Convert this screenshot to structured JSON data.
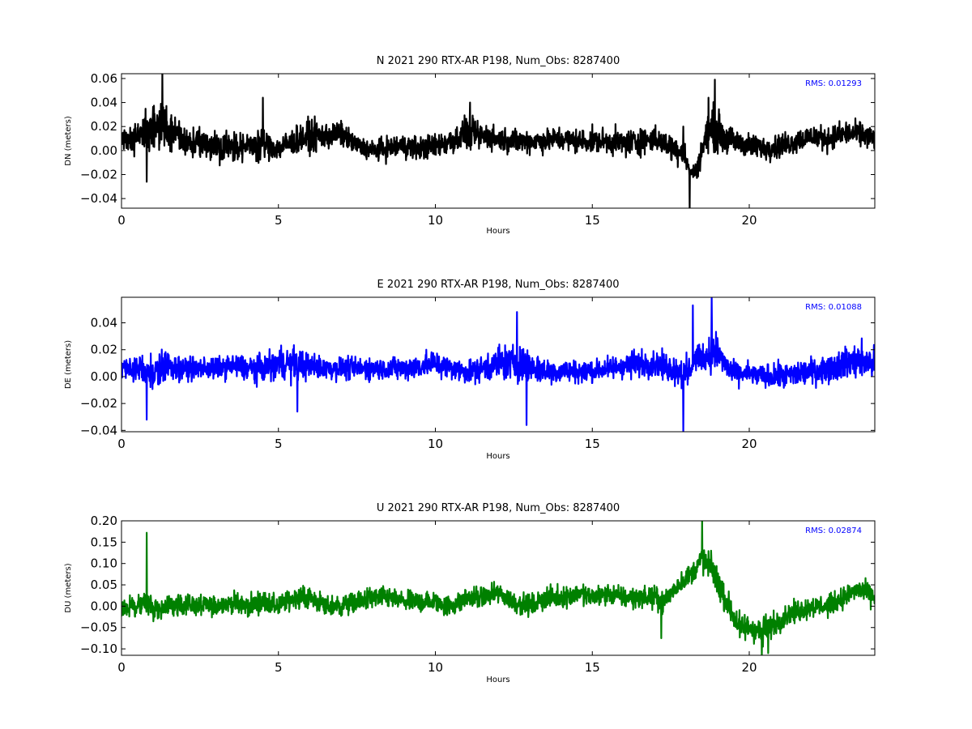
{
  "chart_data": [
    {
      "type": "line",
      "title": "N 2021 290 RTX-AR  P198, Num_Obs: 8287400",
      "xlabel": "Hours",
      "ylabel": "DN (meters)",
      "xlim": [
        0,
        24
      ],
      "ylim": [
        -0.048,
        0.064
      ],
      "xticks": [
        0,
        5,
        10,
        15,
        20
      ],
      "xtick_labels": [
        "0",
        "5",
        "10",
        "15",
        "20"
      ],
      "yticks": [
        -0.04,
        -0.02,
        0.0,
        0.02,
        0.04,
        0.06
      ],
      "ytick_labels": [
        "−0.04",
        "−0.02",
        "0.00",
        "0.02",
        "0.04",
        "0.06"
      ],
      "grid": false,
      "annotation": "RMS:  0.01293",
      "color": "#000000",
      "annotation_color": "#0000ff",
      "series": [
        {
          "x": [
            0,
            0.5,
            1.0,
            1.3,
            1.6,
            2.0,
            2.5,
            3.0,
            3.5,
            4.0,
            4.5,
            5.0,
            5.5,
            6.0,
            6.5,
            7.0,
            7.5,
            8.0,
            8.5,
            9.0,
            9.5,
            10.0,
            10.5,
            11.0,
            11.5,
            12.0,
            12.5,
            13.0,
            13.5,
            14.0,
            14.5,
            15.0,
            15.5,
            16.0,
            16.5,
            17.0,
            17.3,
            17.6,
            17.9,
            18.1,
            18.3,
            18.6,
            18.9,
            19.2,
            19.5,
            20.0,
            20.5,
            21.0,
            21.5,
            22.0,
            22.5,
            23.0,
            23.5,
            24.0
          ],
          "center": [
            0.01,
            0.012,
            0.018,
            0.02,
            0.015,
            0.008,
            0.006,
            0.004,
            0.004,
            0.003,
            0.006,
            0.002,
            0.008,
            0.012,
            0.012,
            0.014,
            0.004,
            0.0,
            0.002,
            0.004,
            0.002,
            0.004,
            0.008,
            0.014,
            0.012,
            0.01,
            0.008,
            0.008,
            0.008,
            0.01,
            0.008,
            0.008,
            0.008,
            0.006,
            0.008,
            0.01,
            0.005,
            0.002,
            0.0,
            -0.018,
            -0.018,
            0.01,
            0.02,
            0.01,
            0.008,
            0.004,
            0.002,
            0.004,
            0.008,
            0.012,
            0.01,
            0.014,
            0.014,
            0.01
          ],
          "spread": [
            0.012,
            0.016,
            0.022,
            0.024,
            0.022,
            0.014,
            0.014,
            0.016,
            0.014,
            0.014,
            0.016,
            0.012,
            0.014,
            0.016,
            0.014,
            0.012,
            0.01,
            0.01,
            0.012,
            0.012,
            0.012,
            0.012,
            0.014,
            0.016,
            0.014,
            0.012,
            0.012,
            0.012,
            0.012,
            0.012,
            0.012,
            0.012,
            0.012,
            0.014,
            0.014,
            0.012,
            0.012,
            0.014,
            0.016,
            0.004,
            0.01,
            0.016,
            0.024,
            0.016,
            0.012,
            0.012,
            0.012,
            0.012,
            0.012,
            0.012,
            0.012,
            0.012,
            0.012,
            0.012
          ],
          "spikes": [
            [
              1.3,
              0.064
            ],
            [
              0.8,
              -0.026
            ],
            [
              4.5,
              0.044
            ],
            [
              11.1,
              0.04
            ],
            [
              17.9,
              0.02
            ],
            [
              18.1,
              -0.048
            ],
            [
              18.9,
              0.059
            ],
            [
              18.7,
              0.044
            ]
          ]
        }
      ]
    },
    {
      "type": "line",
      "title": "E 2021 290 RTX-AR  P198, Num_Obs: 8287400",
      "xlabel": "Hours",
      "ylabel": "DE (meters)",
      "xlim": [
        0,
        24
      ],
      "ylim": [
        -0.041,
        0.059
      ],
      "xticks": [
        0,
        5,
        10,
        15,
        20
      ],
      "xtick_labels": [
        "0",
        "5",
        "10",
        "15",
        "20"
      ],
      "yticks": [
        -0.04,
        -0.02,
        0.0,
        0.02,
        0.04
      ],
      "ytick_labels": [
        "−0.04",
        "−0.02",
        "0.00",
        "0.02",
        "0.04"
      ],
      "grid": false,
      "annotation": "RMS:  0.01088",
      "color": "#0000ff",
      "annotation_color": "#0000ff",
      "series": [
        {
          "x": [
            0,
            0.5,
            1.0,
            1.5,
            2.0,
            2.5,
            3.0,
            3.5,
            4.0,
            4.5,
            5.0,
            5.5,
            6.0,
            6.5,
            7.0,
            7.5,
            8.0,
            8.5,
            9.0,
            9.5,
            10.0,
            10.5,
            11.0,
            11.5,
            12.0,
            12.5,
            13.0,
            13.5,
            14.0,
            14.5,
            15.0,
            15.5,
            16.0,
            16.5,
            17.0,
            17.5,
            17.8,
            18.0,
            18.3,
            18.6,
            18.9,
            19.2,
            19.5,
            20.0,
            20.5,
            21.0,
            21.5,
            22.0,
            22.5,
            23.0,
            23.5,
            24.0
          ],
          "center": [
            0.006,
            0.006,
            0.004,
            0.008,
            0.006,
            0.006,
            0.006,
            0.008,
            0.006,
            0.006,
            0.01,
            0.01,
            0.008,
            0.006,
            0.006,
            0.006,
            0.006,
            0.006,
            0.006,
            0.008,
            0.01,
            0.006,
            0.004,
            0.006,
            0.01,
            0.01,
            0.008,
            0.004,
            0.004,
            0.004,
            0.004,
            0.006,
            0.008,
            0.01,
            0.01,
            0.006,
            0.004,
            0.0,
            0.014,
            0.014,
            0.02,
            0.01,
            0.002,
            0.002,
            0.0,
            0.0,
            0.002,
            0.004,
            0.006,
            0.01,
            0.012,
            0.01
          ],
          "spread": [
            0.012,
            0.012,
            0.014,
            0.012,
            0.01,
            0.01,
            0.01,
            0.01,
            0.012,
            0.012,
            0.014,
            0.016,
            0.012,
            0.01,
            0.01,
            0.01,
            0.01,
            0.01,
            0.01,
            0.012,
            0.012,
            0.01,
            0.01,
            0.012,
            0.016,
            0.016,
            0.016,
            0.012,
            0.01,
            0.01,
            0.01,
            0.01,
            0.012,
            0.012,
            0.012,
            0.012,
            0.014,
            0.014,
            0.01,
            0.012,
            0.02,
            0.012,
            0.01,
            0.01,
            0.01,
            0.012,
            0.012,
            0.012,
            0.012,
            0.014,
            0.016,
            0.014
          ],
          "spikes": [
            [
              0.8,
              -0.032
            ],
            [
              5.6,
              -0.026
            ],
            [
              12.6,
              0.048
            ],
            [
              12.9,
              -0.036
            ],
            [
              17.9,
              -0.041
            ],
            [
              18.2,
              0.053
            ],
            [
              18.8,
              0.059
            ],
            [
              18.0,
              0.018
            ]
          ]
        }
      ]
    },
    {
      "type": "line",
      "title": "U 2021 290 RTX-AR  P198, Num_Obs: 8287400",
      "xlabel": "Hours",
      "ylabel": "DU (meters)",
      "xlim": [
        0,
        24
      ],
      "ylim": [
        -0.115,
        0.2
      ],
      "xticks": [
        0,
        5,
        10,
        15,
        20
      ],
      "xtick_labels": [
        "0",
        "5",
        "10",
        "15",
        "20"
      ],
      "yticks": [
        -0.1,
        -0.05,
        0.0,
        0.05,
        0.1,
        0.15,
        0.2
      ],
      "ytick_labels": [
        "−0.10",
        "−0.05",
        "0.00",
        "0.05",
        "0.10",
        "0.15",
        "0.20"
      ],
      "grid": false,
      "annotation": "RMS:  0.02874",
      "color": "#008000",
      "annotation_color": "#0000ff",
      "series": [
        {
          "x": [
            0,
            0.5,
            0.8,
            1.0,
            1.5,
            2.0,
            2.5,
            3.0,
            3.5,
            4.0,
            4.5,
            5.0,
            5.5,
            6.0,
            6.5,
            7.0,
            7.5,
            8.0,
            8.5,
            9.0,
            9.5,
            10.0,
            10.5,
            11.0,
            11.5,
            12.0,
            12.5,
            13.0,
            13.5,
            14.0,
            14.5,
            15.0,
            15.5,
            16.0,
            16.5,
            17.0,
            17.3,
            17.6,
            17.9,
            18.2,
            18.5,
            18.8,
            19.1,
            19.4,
            19.7,
            20.0,
            20.4,
            20.8,
            21.2,
            21.6,
            22.0,
            22.5,
            23.0,
            23.5,
            24.0
          ],
          "center": [
            0.0,
            0.0,
            0.01,
            -0.01,
            0.0,
            0.005,
            0.0,
            0.0,
            0.01,
            0.0,
            0.01,
            0.0,
            0.02,
            0.02,
            0.0,
            0.0,
            0.01,
            0.02,
            0.02,
            0.01,
            0.01,
            0.01,
            0.0,
            0.02,
            0.02,
            0.03,
            0.01,
            0.0,
            0.02,
            0.02,
            0.03,
            0.02,
            0.03,
            0.02,
            0.02,
            0.02,
            0.01,
            0.04,
            0.06,
            0.08,
            0.11,
            0.09,
            0.04,
            -0.01,
            -0.05,
            -0.05,
            -0.06,
            -0.04,
            -0.02,
            -0.01,
            0.0,
            0.0,
            0.02,
            0.04,
            0.02
          ],
          "spread": [
            0.03,
            0.03,
            0.05,
            0.03,
            0.03,
            0.03,
            0.03,
            0.03,
            0.03,
            0.03,
            0.03,
            0.03,
            0.03,
            0.03,
            0.03,
            0.03,
            0.03,
            0.03,
            0.03,
            0.03,
            0.03,
            0.03,
            0.03,
            0.03,
            0.03,
            0.03,
            0.03,
            0.03,
            0.03,
            0.03,
            0.03,
            0.03,
            0.03,
            0.03,
            0.03,
            0.03,
            0.03,
            0.03,
            0.03,
            0.03,
            0.04,
            0.04,
            0.04,
            0.04,
            0.04,
            0.04,
            0.04,
            0.035,
            0.03,
            0.03,
            0.03,
            0.03,
            0.03,
            0.03,
            0.03
          ],
          "spikes": [
            [
              0.8,
              0.172
            ],
            [
              18.5,
              0.205
            ],
            [
              17.2,
              -0.075
            ],
            [
              20.4,
              -0.115
            ],
            [
              20.6,
              -0.11
            ]
          ]
        }
      ]
    }
  ]
}
